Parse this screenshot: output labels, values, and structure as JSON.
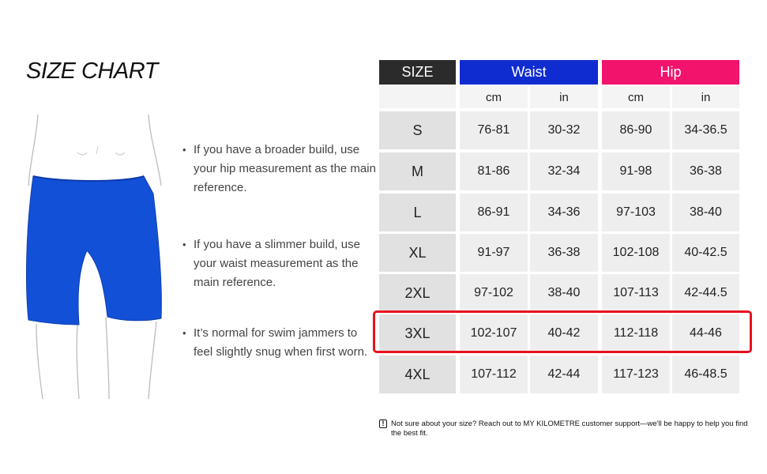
{
  "title": "SIZE CHART",
  "tips": [
    "If you have a broader build, use your hip measurement as the main reference.",
    "If you have a slimmer build, use your waist measurement as the main reference.",
    "It’s normal for swim jammers to feel slightly snug when first worn."
  ],
  "table": {
    "size_header": "SIZE",
    "waist_header": "Waist",
    "hip_header": "Hip",
    "units": [
      "cm",
      "in",
      "cm",
      "in"
    ],
    "rows": [
      {
        "size": "S",
        "waist_cm": "76-81",
        "waist_in": "30-32",
        "hip_cm": "86-90",
        "hip_in": "34-36.5"
      },
      {
        "size": "M",
        "waist_cm": "81-86",
        "waist_in": "32-34",
        "hip_cm": "91-98",
        "hip_in": "36-38"
      },
      {
        "size": "L",
        "waist_cm": "86-91",
        "waist_in": "34-36",
        "hip_cm": "97-103",
        "hip_in": "38-40"
      },
      {
        "size": "XL",
        "waist_cm": "91-97",
        "waist_in": "36-38",
        "hip_cm": "102-108",
        "hip_in": "40-42.5"
      },
      {
        "size": "2XL",
        "waist_cm": "97-102",
        "waist_in": "38-40",
        "hip_cm": "107-113",
        "hip_in": "42-44.5"
      },
      {
        "size": "3XL",
        "waist_cm": "102-107",
        "waist_in": "40-42",
        "hip_cm": "112-118",
        "hip_in": "44-46"
      },
      {
        "size": "4XL",
        "waist_cm": "107-112",
        "waist_in": "42-44",
        "hip_cm": "117-123",
        "hip_in": "46-48.5"
      }
    ],
    "highlighted_size": "3XL"
  },
  "note": {
    "icon": "exclamation-icon",
    "icon_glyph": "!",
    "text": "Not sure about your size? Reach out to MY KILOMETRE customer support—we'll be happy to help you find the best fit."
  },
  "colors": {
    "size_header_bg": "#2b2b2b",
    "waist_header_bg": "#0f2cd0",
    "hip_header_bg": "#f2136d",
    "jammer_blue": "#1350d8",
    "highlight_border": "#e8111e"
  }
}
